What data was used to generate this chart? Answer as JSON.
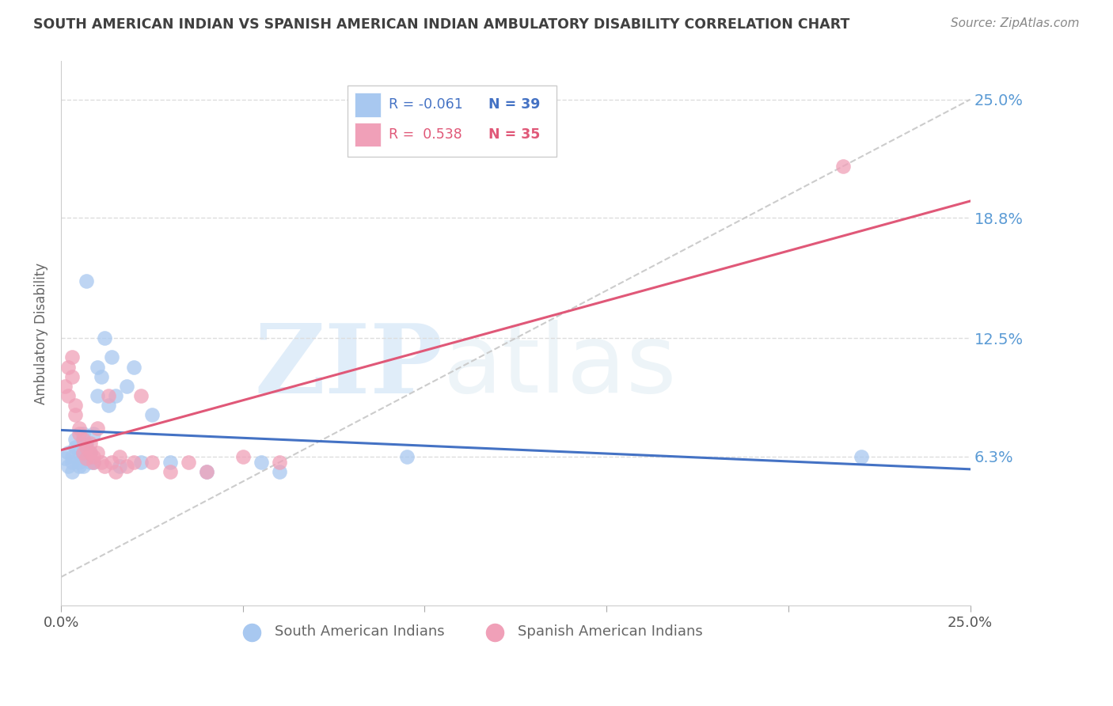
{
  "title": "SOUTH AMERICAN INDIAN VS SPANISH AMERICAN INDIAN AMBULATORY DISABILITY CORRELATION CHART",
  "source": "Source: ZipAtlas.com",
  "ylabel": "Ambulatory Disability",
  "xlim": [
    0.0,
    0.25
  ],
  "ylim": [
    -0.015,
    0.27
  ],
  "yticks": [
    0.063,
    0.125,
    0.188,
    0.25
  ],
  "ytick_labels": [
    "6.3%",
    "12.5%",
    "18.8%",
    "25.0%"
  ],
  "watermark_zip": "ZIP",
  "watermark_atlas": "atlas",
  "legend_blue_r": "-0.061",
  "legend_blue_n": "39",
  "legend_pink_r": "0.538",
  "legend_pink_n": "35",
  "blue_scatter_color": "#A8C8F0",
  "pink_scatter_color": "#F0A0B8",
  "blue_line_color": "#4472C4",
  "pink_line_color": "#E05878",
  "diagonal_color": "#CCCCCC",
  "grid_color": "#DDDDDD",
  "title_color": "#404040",
  "right_axis_color": "#5B9BD5",
  "south_american_x": [
    0.001,
    0.002,
    0.002,
    0.003,
    0.003,
    0.003,
    0.004,
    0.004,
    0.005,
    0.005,
    0.005,
    0.006,
    0.006,
    0.006,
    0.007,
    0.007,
    0.007,
    0.008,
    0.008,
    0.009,
    0.009,
    0.01,
    0.01,
    0.011,
    0.012,
    0.013,
    0.014,
    0.015,
    0.016,
    0.018,
    0.02,
    0.022,
    0.025,
    0.03,
    0.04,
    0.055,
    0.06,
    0.095,
    0.22
  ],
  "south_american_y": [
    0.062,
    0.058,
    0.065,
    0.06,
    0.063,
    0.055,
    0.068,
    0.072,
    0.06,
    0.058,
    0.065,
    0.075,
    0.063,
    0.058,
    0.07,
    0.155,
    0.063,
    0.065,
    0.06,
    0.075,
    0.06,
    0.11,
    0.095,
    0.105,
    0.125,
    0.09,
    0.115,
    0.095,
    0.058,
    0.1,
    0.11,
    0.06,
    0.085,
    0.06,
    0.055,
    0.06,
    0.055,
    0.063,
    0.063
  ],
  "spanish_american_x": [
    0.001,
    0.002,
    0.002,
    0.003,
    0.003,
    0.004,
    0.004,
    0.005,
    0.005,
    0.006,
    0.006,
    0.007,
    0.007,
    0.008,
    0.008,
    0.009,
    0.009,
    0.01,
    0.01,
    0.011,
    0.012,
    0.013,
    0.014,
    0.015,
    0.016,
    0.018,
    0.02,
    0.022,
    0.025,
    0.03,
    0.035,
    0.04,
    0.05,
    0.06,
    0.215
  ],
  "spanish_american_y": [
    0.1,
    0.11,
    0.095,
    0.115,
    0.105,
    0.085,
    0.09,
    0.078,
    0.075,
    0.072,
    0.065,
    0.068,
    0.062,
    0.07,
    0.065,
    0.063,
    0.06,
    0.078,
    0.065,
    0.06,
    0.058,
    0.095,
    0.06,
    0.055,
    0.063,
    0.058,
    0.06,
    0.095,
    0.06,
    0.055,
    0.06,
    0.055,
    0.063,
    0.06,
    0.215
  ]
}
